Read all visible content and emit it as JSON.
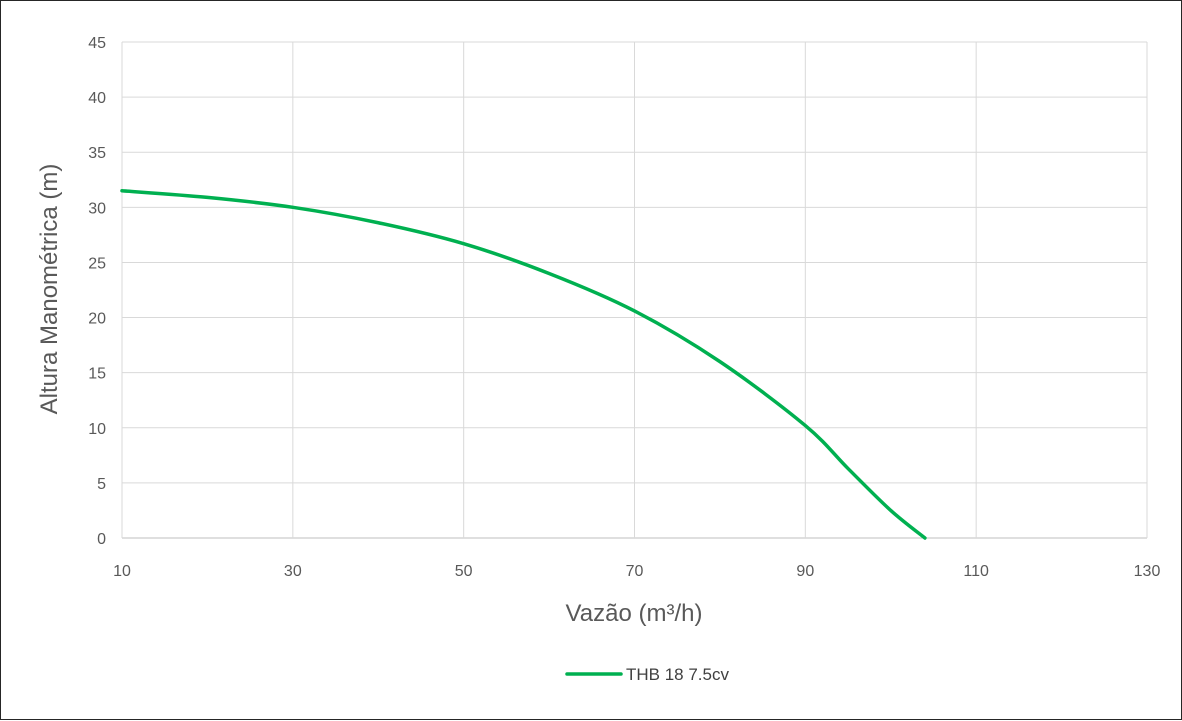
{
  "chart_data": {
    "type": "line",
    "title": "",
    "xlabel": "Vazão (m³/h)",
    "ylabel": "Altura Manométrica (m)",
    "xlim": [
      10,
      130
    ],
    "ylim": [
      0,
      45
    ],
    "x_ticks": [
      "10",
      "30",
      "50",
      "70",
      "90",
      "110",
      "130"
    ],
    "y_ticks": [
      "0",
      "5",
      "10",
      "15",
      "20",
      "25",
      "30",
      "35",
      "40",
      "45"
    ],
    "grid": true,
    "legend_position": "bottom",
    "series": [
      {
        "name": "THB 18 7.5cv",
        "color": "#00b050",
        "x": [
          10,
          20,
          30,
          40,
          50,
          60,
          70,
          80,
          90,
          95,
          100,
          104
        ],
        "y": [
          31.5,
          30.9,
          30.0,
          28.6,
          26.7,
          24.0,
          20.6,
          16.0,
          10.2,
          6.3,
          2.5,
          0.0
        ]
      }
    ]
  }
}
